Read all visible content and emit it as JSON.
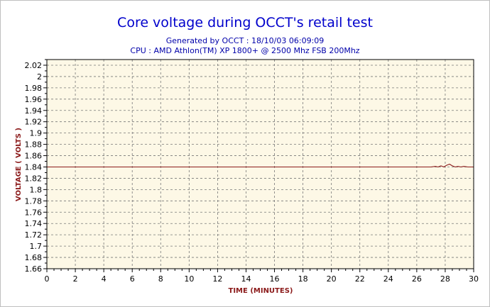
{
  "chart_data": {
    "type": "line",
    "title": "Core voltage during OCCT's retail test",
    "subtitle_lines": [
      "Generated by OCCT : 18/10/03 06:09:09",
      "CPU : AMD Athlon(TM) XP 1800+ @ 2500 Mhz FSB 200Mhz"
    ],
    "xlabel": "TIME (MINUTES)",
    "ylabel": "VOLTAGE ( VOLTS )",
    "xlim": [
      0,
      30
    ],
    "ylim": [
      1.66,
      2.03
    ],
    "x_ticks": [
      0,
      2,
      4,
      6,
      8,
      10,
      12,
      14,
      16,
      18,
      20,
      22,
      24,
      26,
      28,
      30
    ],
    "y_ticks": [
      1.66,
      1.68,
      1.7,
      1.72,
      1.74,
      1.76,
      1.78,
      1.8,
      1.82,
      1.84,
      1.86,
      1.88,
      1.9,
      1.92,
      1.94,
      1.96,
      1.98,
      2.0,
      2.02
    ],
    "y_tick_labels": [
      "1.66",
      "1.68",
      "1.7",
      "1.72",
      "1.74",
      "1.76",
      "1.78",
      "1.8",
      "1.82",
      "1.84",
      "1.86",
      "1.88",
      "1.9",
      "1.92",
      "1.94",
      "1.96",
      "1.98",
      "2",
      "2.02"
    ],
    "grid": true,
    "legend": "none",
    "series": [
      {
        "color": "#8b1a1a",
        "x": [
          0,
          27.0,
          27.3,
          27.5,
          27.7,
          27.9,
          28.1,
          28.3,
          28.5,
          28.7,
          28.9,
          29.1,
          29.3,
          29.6,
          30
        ],
        "y": [
          1.84,
          1.84,
          1.841,
          1.84,
          1.842,
          1.84,
          1.843,
          1.845,
          1.842,
          1.84,
          1.841,
          1.84,
          1.841,
          1.84,
          1.84
        ]
      }
    ],
    "colors": {
      "title": "#0000cc",
      "subtitle": "#0000aa",
      "axis_label": "#8b1a1a",
      "plot_background": "#fdf8e6",
      "grid": "#777777",
      "line": "#8b1a1a"
    }
  }
}
